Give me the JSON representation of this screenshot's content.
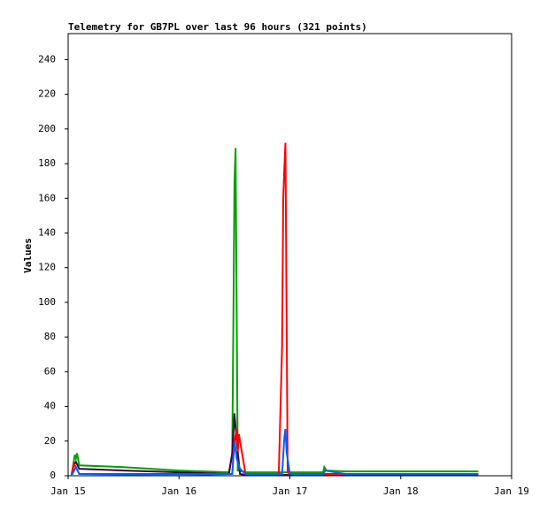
{
  "chart_data": {
    "type": "line",
    "title": "Telemetry for GB7PL over last 96 hours (321 points)",
    "y_label": "Values",
    "xlim": [
      15,
      19
    ],
    "xticks": [
      {
        "value": 15,
        "label": "Jan 15"
      },
      {
        "value": 16,
        "label": "Jan 16"
      },
      {
        "value": 17,
        "label": "Jan 17"
      },
      {
        "value": 18,
        "label": "Jan 18"
      },
      {
        "value": 19,
        "label": "Jan 19"
      }
    ],
    "ylim": [
      0,
      255
    ],
    "yticks": [
      0,
      20,
      40,
      60,
      80,
      100,
      120,
      140,
      160,
      180,
      200,
      220,
      240
    ],
    "series": [
      {
        "color": "#00a000",
        "x": [
          15.03,
          15.05,
          15.06,
          15.07,
          15.08,
          15.1,
          15.5,
          16.0,
          16.45,
          16.48,
          16.49,
          16.5,
          16.51,
          16.52,
          16.53,
          16.6,
          17.0,
          17.3,
          17.31,
          17.33,
          17.5,
          18.0,
          18.7
        ],
        "values": [
          0,
          8,
          12,
          10,
          13,
          6,
          5,
          3,
          2,
          12,
          85,
          168,
          189,
          97,
          3,
          2,
          2,
          2,
          5,
          3,
          2.5,
          2.5,
          2.5
        ]
      },
      {
        "color": "#400040",
        "x": [
          15.03,
          15.05,
          15.07,
          15.1,
          15.5,
          16.0,
          16.45,
          16.48,
          16.5,
          16.52,
          16.55,
          16.6,
          17.0,
          18.7
        ],
        "values": [
          0,
          6,
          8,
          4,
          3,
          2,
          1,
          13,
          36,
          20,
          1,
          0.5,
          0.5,
          0.5
        ]
      },
      {
        "color": "#ff0000",
        "x": [
          15.03,
          15.05,
          15.07,
          15.1,
          15.5,
          16.0,
          16.48,
          16.5,
          16.52,
          16.53,
          16.54,
          16.6,
          16.9,
          16.93,
          16.94,
          16.95,
          16.96,
          16.97,
          16.98,
          17.0,
          17.5,
          18.7
        ],
        "values": [
          0,
          7,
          5,
          1,
          1,
          1,
          1,
          20,
          27,
          14,
          24,
          1,
          1,
          75,
          160,
          177,
          192,
          96,
          2,
          1,
          1,
          1
        ]
      },
      {
        "color": "#0060ff",
        "x": [
          15.03,
          15.07,
          15.1,
          16.0,
          16.48,
          16.5,
          16.52,
          16.55,
          16.6,
          16.93,
          16.95,
          16.96,
          16.97,
          17.0,
          17.3,
          17.32,
          17.5,
          18.7
        ],
        "values": [
          0,
          5,
          1,
          0.5,
          1,
          20,
          10,
          4,
          1,
          1,
          22,
          27,
          14,
          1,
          1,
          3,
          1,
          1
        ]
      }
    ]
  }
}
